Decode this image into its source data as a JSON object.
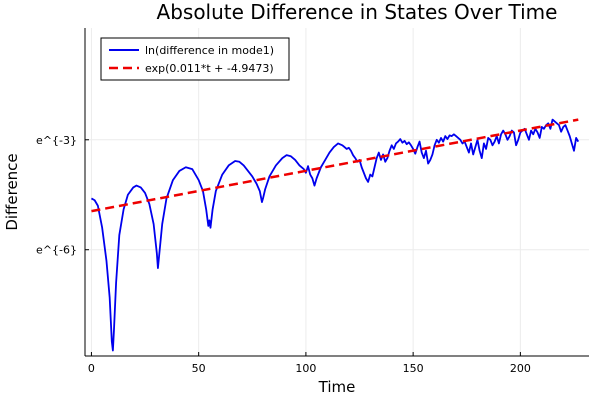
{
  "chart_data": {
    "type": "line",
    "title": "Absolute Difference in States Over Time",
    "xlabel": "Time",
    "ylabel": "Difference",
    "xlim": [
      -3,
      232
    ],
    "ylim": [
      -8.9,
      0.05
    ],
    "y_scale": "log",
    "grid": true,
    "legend_position": "top-left",
    "x_ticks": [
      {
        "value": 0,
        "label": "0"
      },
      {
        "value": 50,
        "label": "50"
      },
      {
        "value": 100,
        "label": "100"
      },
      {
        "value": 150,
        "label": "150"
      },
      {
        "value": 200,
        "label": "200"
      }
    ],
    "y_ticks": [
      {
        "value": -6,
        "label": "e^{-6}"
      },
      {
        "value": -3,
        "label": "e^{-3}"
      }
    ],
    "series": [
      {
        "name": "ln(difference in mode1)",
        "color": "#0000ee",
        "style": "solid",
        "points": [
          [
            0,
            -4.6
          ],
          [
            1.5,
            -4.65
          ],
          [
            3,
            -4.8
          ],
          [
            5,
            -5.4
          ],
          [
            7,
            -6.3
          ],
          [
            8.5,
            -7.3
          ],
          [
            9.5,
            -8.5
          ],
          [
            10,
            -8.75
          ],
          [
            10.5,
            -8.2
          ],
          [
            11.5,
            -6.9
          ],
          [
            13,
            -5.6
          ],
          [
            15,
            -4.9
          ],
          [
            17,
            -4.5
          ],
          [
            19.5,
            -4.3
          ],
          [
            21,
            -4.25
          ],
          [
            23,
            -4.3
          ],
          [
            25,
            -4.45
          ],
          [
            27,
            -4.75
          ],
          [
            29,
            -5.3
          ],
          [
            30.5,
            -6.1
          ],
          [
            31,
            -6.5
          ],
          [
            31.5,
            -6.2
          ],
          [
            33,
            -5.3
          ],
          [
            35,
            -4.6
          ],
          [
            38,
            -4.1
          ],
          [
            41,
            -3.85
          ],
          [
            44,
            -3.75
          ],
          [
            47,
            -3.8
          ],
          [
            50,
            -4.1
          ],
          [
            52,
            -4.4
          ],
          [
            53.5,
            -4.9
          ],
          [
            54.5,
            -5.35
          ],
          [
            55,
            -5.2
          ],
          [
            55.5,
            -5.4
          ],
          [
            56.5,
            -4.9
          ],
          [
            58,
            -4.4
          ],
          [
            61,
            -3.95
          ],
          [
            64,
            -3.7
          ],
          [
            67,
            -3.58
          ],
          [
            69,
            -3.6
          ],
          [
            71,
            -3.7
          ],
          [
            73,
            -3.85
          ],
          [
            75,
            -4.0
          ],
          [
            77,
            -4.2
          ],
          [
            78.5,
            -4.4
          ],
          [
            79.5,
            -4.7
          ],
          [
            80,
            -4.6
          ],
          [
            81,
            -4.35
          ],
          [
            83,
            -4.0
          ],
          [
            86,
            -3.7
          ],
          [
            89,
            -3.5
          ],
          [
            91,
            -3.42
          ],
          [
            93,
            -3.45
          ],
          [
            95,
            -3.55
          ],
          [
            97,
            -3.7
          ],
          [
            99,
            -3.8
          ],
          [
            100,
            -3.9
          ],
          [
            101,
            -3.72
          ],
          [
            102,
            -3.95
          ],
          [
            103,
            -4.05
          ],
          [
            104,
            -4.25
          ],
          [
            105,
            -4.05
          ],
          [
            106,
            -3.9
          ],
          [
            107,
            -3.75
          ],
          [
            109,
            -3.55
          ],
          [
            111,
            -3.35
          ],
          [
            113,
            -3.2
          ],
          [
            115,
            -3.1
          ],
          [
            117,
            -3.15
          ],
          [
            118,
            -3.2
          ],
          [
            119,
            -3.25
          ],
          [
            120,
            -3.22
          ],
          [
            121,
            -3.3
          ],
          [
            122,
            -3.42
          ],
          [
            123,
            -3.5
          ],
          [
            124,
            -3.6
          ],
          [
            125,
            -3.55
          ],
          [
            126,
            -3.75
          ],
          [
            127,
            -3.9
          ],
          [
            128,
            -4.05
          ],
          [
            129,
            -4.15
          ],
          [
            130,
            -3.95
          ],
          [
            131,
            -4.0
          ],
          [
            132,
            -3.75
          ],
          [
            133,
            -3.5
          ],
          [
            134,
            -3.35
          ],
          [
            135,
            -3.55
          ],
          [
            136,
            -3.4
          ],
          [
            137,
            -3.6
          ],
          [
            138,
            -3.5
          ],
          [
            139,
            -3.3
          ],
          [
            140,
            -3.15
          ],
          [
            141,
            -3.25
          ],
          [
            142,
            -3.1
          ],
          [
            143,
            -3.05
          ],
          [
            144,
            -2.98
          ],
          [
            145,
            -3.08
          ],
          [
            146,
            -3.03
          ],
          [
            147,
            -3.12
          ],
          [
            148,
            -3.07
          ],
          [
            149,
            -3.15
          ],
          [
            150,
            -3.25
          ],
          [
            151,
            -3.38
          ],
          [
            152,
            -3.2
          ],
          [
            153,
            -3.05
          ],
          [
            154,
            -3.35
          ],
          [
            155,
            -3.5
          ],
          [
            156,
            -3.3
          ],
          [
            157,
            -3.65
          ],
          [
            158,
            -3.55
          ],
          [
            159,
            -3.4
          ],
          [
            160,
            -3.15
          ],
          [
            161,
            -3.0
          ],
          [
            162,
            -3.08
          ],
          [
            163,
            -2.95
          ],
          [
            164,
            -3.05
          ],
          [
            165,
            -2.9
          ],
          [
            166,
            -2.98
          ],
          [
            167,
            -2.88
          ],
          [
            168,
            -2.9
          ],
          [
            169,
            -2.85
          ],
          [
            170,
            -2.9
          ],
          [
            171,
            -2.95
          ],
          [
            172,
            -3.0
          ],
          [
            173,
            -3.1
          ],
          [
            174,
            -3.05
          ],
          [
            175,
            -3.2
          ],
          [
            176,
            -3.35
          ],
          [
            177,
            -3.1
          ],
          [
            178,
            -3.4
          ],
          [
            179,
            -3.2
          ],
          [
            180,
            -3.0
          ],
          [
            181,
            -3.3
          ],
          [
            182,
            -3.5
          ],
          [
            183,
            -3.1
          ],
          [
            184,
            -3.25
          ],
          [
            185,
            -2.95
          ],
          [
            186,
            -3.0
          ],
          [
            187,
            -3.15
          ],
          [
            188,
            -3.05
          ],
          [
            189,
            -2.9
          ],
          [
            190,
            -3.1
          ],
          [
            191,
            -2.85
          ],
          [
            192,
            -2.75
          ],
          [
            193,
            -2.85
          ],
          [
            194,
            -3.0
          ],
          [
            195,
            -2.9
          ],
          [
            196,
            -2.75
          ],
          [
            197,
            -2.8
          ],
          [
            198,
            -3.15
          ],
          [
            199,
            -3.0
          ],
          [
            200,
            -2.8
          ],
          [
            201,
            -2.75
          ],
          [
            202,
            -2.7
          ],
          [
            203,
            -2.85
          ],
          [
            204,
            -3.0
          ],
          [
            205,
            -2.75
          ],
          [
            206,
            -2.85
          ],
          [
            207,
            -2.7
          ],
          [
            208,
            -2.8
          ],
          [
            209,
            -2.95
          ],
          [
            210,
            -2.65
          ],
          [
            211,
            -2.7
          ],
          [
            212,
            -2.6
          ],
          [
            213,
            -2.55
          ],
          [
            214,
            -2.7
          ],
          [
            215,
            -2.45
          ],
          [
            216,
            -2.5
          ],
          [
            217,
            -2.55
          ],
          [
            218,
            -2.6
          ],
          [
            219,
            -2.78
          ],
          [
            220,
            -2.65
          ],
          [
            221,
            -2.6
          ],
          [
            222,
            -2.75
          ],
          [
            223,
            -2.9
          ],
          [
            224,
            -3.1
          ],
          [
            225,
            -3.3
          ],
          [
            226,
            -2.95
          ],
          [
            227,
            -3.05
          ]
        ]
      },
      {
        "name": "exp(0.011*t + -4.9473)",
        "color": "#ee0000",
        "style": "dashed",
        "slope": 0.011,
        "intercept": -4.9473,
        "x_range": [
          0,
          227
        ]
      }
    ]
  }
}
